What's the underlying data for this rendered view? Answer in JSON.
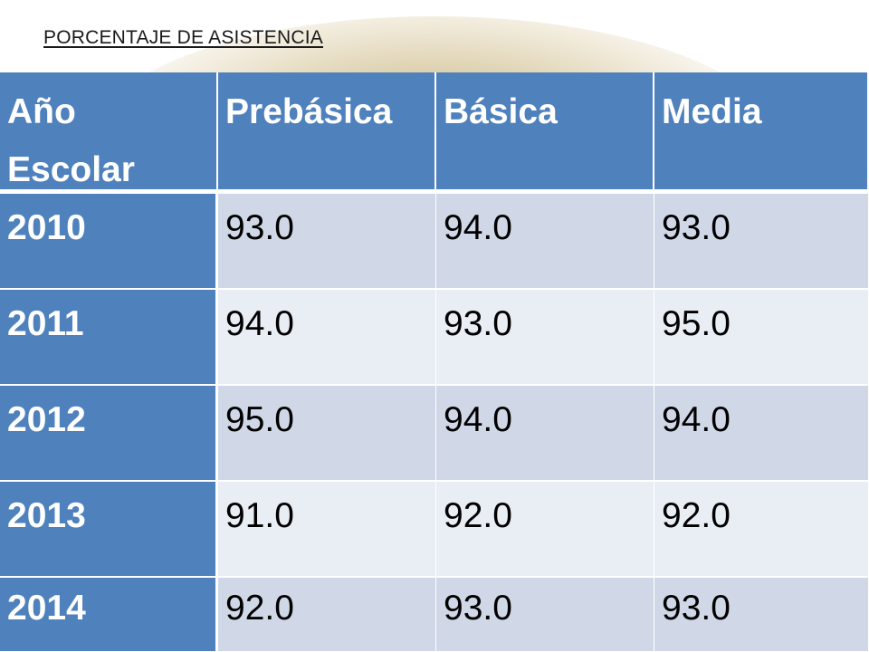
{
  "title": "PORCENTAJE DE ASISTENCIA",
  "table": {
    "headers": [
      {
        "line1": "Año",
        "line2": "Escolar"
      },
      {
        "line1": "Prebásica",
        "line2": ""
      },
      {
        "line1": "Básica",
        "line2": ""
      },
      {
        "line1": "Media",
        "line2": ""
      }
    ],
    "rows": [
      {
        "year": "2010",
        "prebasica": "93.0",
        "basica": "94.0",
        "media": "93.0"
      },
      {
        "year": "2011",
        "prebasica": "94.0",
        "basica": "93.0",
        "media": "95.0"
      },
      {
        "year": "2012",
        "prebasica": "95.0",
        "basica": "94.0",
        "media": "94.0"
      },
      {
        "year": "2013",
        "prebasica": "91.0",
        "basica": "92.0",
        "media": "92.0"
      },
      {
        "year": "2014",
        "prebasica": "92.0",
        "basica": "93.0",
        "media": "93.0"
      }
    ]
  },
  "colors": {
    "header": "#4f81bd",
    "row_odd": "#d0d8e8",
    "row_even": "#e9edf4",
    "background_glow": "#c4b282"
  }
}
